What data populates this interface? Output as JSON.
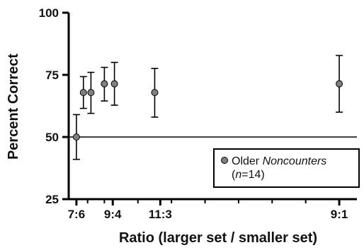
{
  "chart_data": {
    "type": "scatter",
    "xlabel": "Ratio (larger set / smaller set)",
    "ylabel": "Percent Correct",
    "ylim": [
      25,
      100
    ],
    "yticks": [
      25,
      50,
      75,
      100
    ],
    "xlim": [
      1.0,
      9.4
    ],
    "xticks": [
      {
        "label": "7:6",
        "value": 1.1667
      },
      {
        "label": "9:4",
        "value": 2.25
      },
      {
        "label": "11:3",
        "value": 3.6667
      },
      {
        "label": "9:1",
        "value": 9.0
      }
    ],
    "x_minor_tick_values": [
      1.5,
      2.0,
      3.0,
      4.0,
      5.0,
      6.0,
      7.0,
      8.0
    ],
    "reference_line": 50,
    "grid": false,
    "legend": {
      "placement": "lower-right"
    },
    "series": [
      {
        "name": "Older Noncounters (n=14)",
        "color": "#808080",
        "points": [
          {
            "x": 1.1667,
            "y": 50.0,
            "err_low": 41.0,
            "err_high": 59.0
          },
          {
            "x": 1.375,
            "y": 67.9,
            "err_low": 61.5,
            "err_high": 74.3
          },
          {
            "x": 1.6,
            "y": 67.9,
            "err_low": 59.5,
            "err_high": 76.0
          },
          {
            "x": 2.0,
            "y": 71.4,
            "err_low": 64.5,
            "err_high": 78.0
          },
          {
            "x": 2.3,
            "y": 71.4,
            "err_low": 62.8,
            "err_high": 80.0
          },
          {
            "x": 3.5,
            "y": 67.9,
            "err_low": 58.0,
            "err_high": 77.6
          },
          {
            "x": 9.0,
            "y": 71.4,
            "err_low": 60.0,
            "err_high": 82.8
          }
        ]
      }
    ]
  },
  "legend_label": {
    "prefix": "Older ",
    "italic": "Noncounters",
    "line2_open": "(",
    "line2_italic": "n",
    "line2_rest": "=14)"
  }
}
